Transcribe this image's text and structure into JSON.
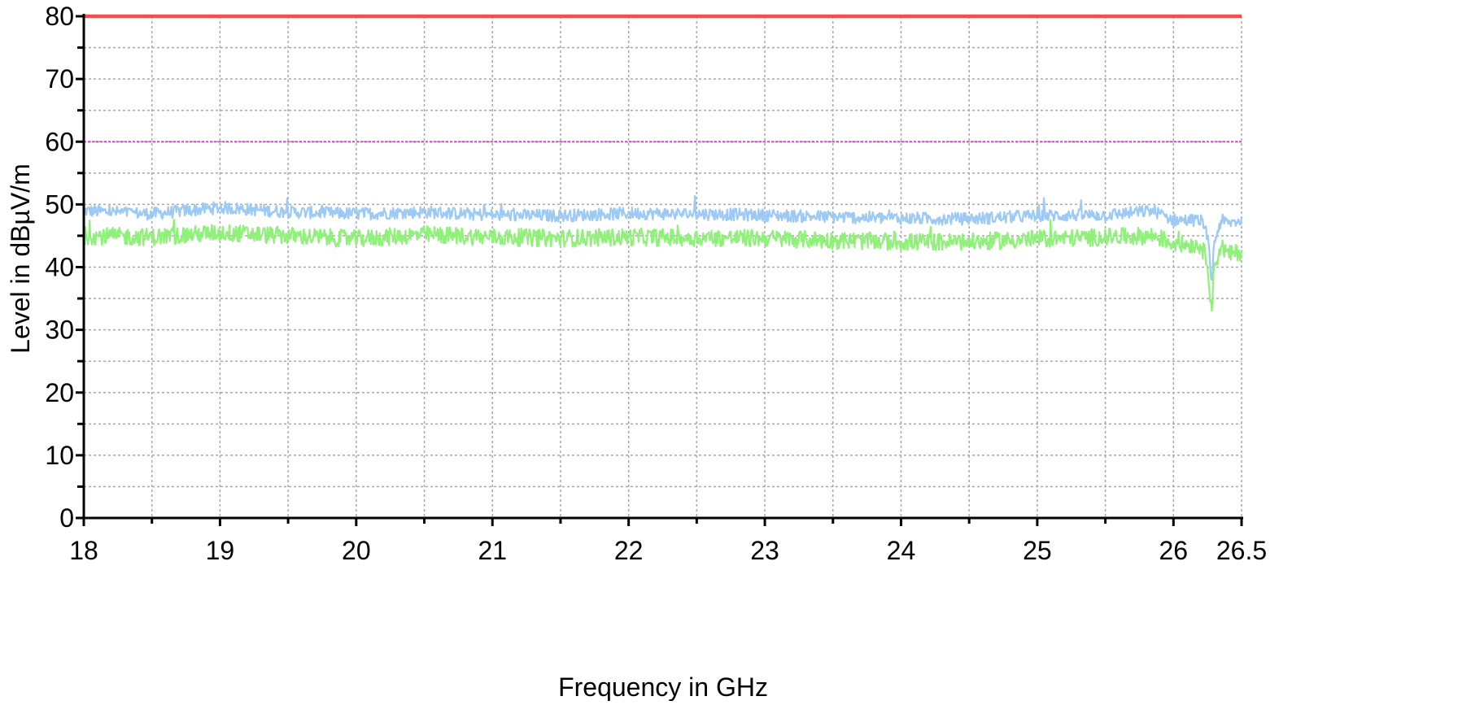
{
  "chart_data": {
    "type": "line",
    "title": "",
    "xlabel": "Frequency in GHz",
    "ylabel": "Level in dBµV/m",
    "xlim": [
      18,
      26.5
    ],
    "ylim": [
      0,
      80
    ],
    "x_ticks": [
      18,
      19,
      20,
      21,
      22,
      23,
      24,
      25,
      26,
      26.5
    ],
    "x_tick_labels": [
      "18",
      "19",
      "20",
      "21",
      "22",
      "23",
      "24",
      "25",
      "26",
      "26.5"
    ],
    "y_ticks": [
      0,
      10,
      20,
      30,
      40,
      50,
      60,
      70,
      80
    ],
    "y_tick_labels": [
      "0",
      "10",
      "20",
      "30",
      "40",
      "50",
      "60",
      "70",
      "80"
    ],
    "grid": true,
    "limit_lines": [
      {
        "value": 80,
        "color": "#ff4a4a",
        "style": "solid"
      },
      {
        "value": 60,
        "color": "#e23fe2",
        "style": "dotted"
      }
    ],
    "series": [
      {
        "color": "#9ccaf5",
        "x": [
          18.0,
          18.5,
          19.0,
          19.5,
          20.0,
          20.5,
          21.0,
          21.5,
          22.0,
          22.5,
          23.0,
          23.5,
          24.0,
          24.5,
          25.0,
          25.5,
          25.85,
          26.0,
          26.2,
          26.25,
          26.28,
          26.3,
          26.35,
          26.4,
          26.5
        ],
        "y": [
          49.0,
          48.5,
          49.5,
          48.8,
          48.5,
          48.8,
          48.3,
          48.2,
          48.6,
          48.5,
          48.3,
          48.0,
          47.8,
          47.7,
          48.2,
          48.3,
          49.0,
          47.5,
          47.5,
          45.0,
          37.5,
          44.0,
          47.5,
          47.0,
          47.5
        ]
      },
      {
        "color": "#8ff07a",
        "x": [
          18.0,
          18.5,
          19.0,
          19.5,
          20.0,
          20.5,
          21.0,
          21.5,
          22.0,
          22.5,
          23.0,
          23.5,
          24.0,
          24.5,
          25.0,
          25.5,
          25.85,
          26.0,
          26.2,
          26.25,
          26.28,
          26.3,
          26.35,
          26.4,
          26.5
        ],
        "y": [
          45.0,
          44.8,
          45.5,
          45.0,
          44.5,
          45.2,
          44.8,
          44.6,
          44.8,
          44.7,
          44.6,
          44.3,
          44.0,
          44.0,
          44.5,
          44.8,
          45.0,
          43.8,
          43.5,
          41.0,
          33.0,
          40.0,
          43.5,
          42.0,
          42.5
        ]
      }
    ]
  }
}
